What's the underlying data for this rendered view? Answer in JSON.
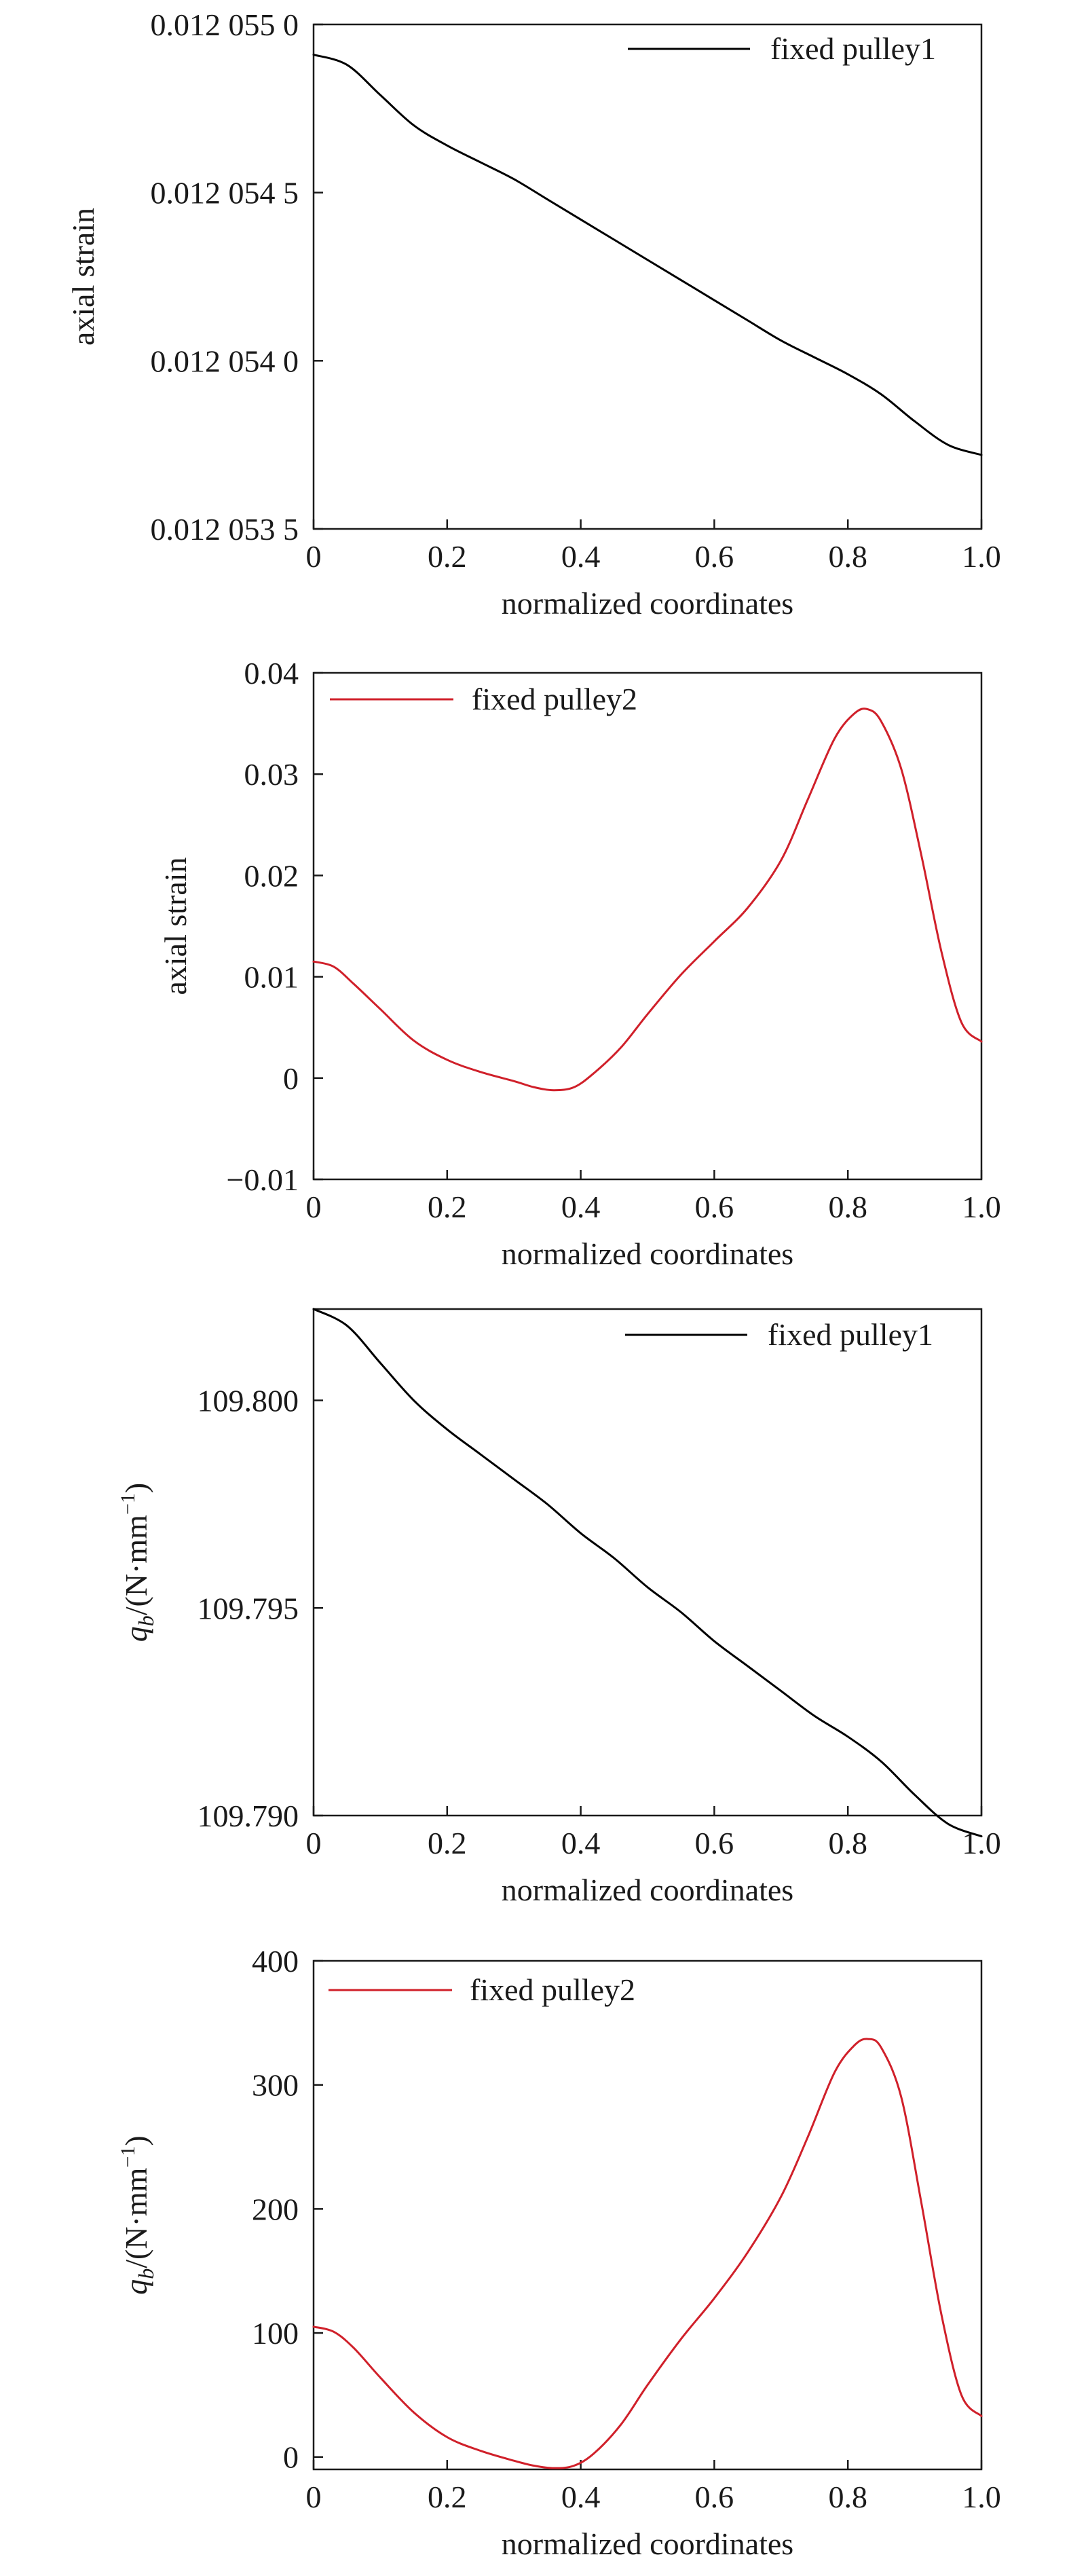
{
  "chart_data": [
    {
      "type": "line",
      "xlabel": "normalized coordinates",
      "ylabel": "axial strain",
      "xlim": [
        0,
        1.0
      ],
      "ylim": [
        0.0120535,
        0.012055
      ],
      "x_ticks": [
        0,
        0.2,
        0.4,
        0.6,
        0.8,
        1.0
      ],
      "x_tick_labels": [
        "0",
        "0.2",
        "0.4",
        "0.6",
        "0.8",
        "1.0"
      ],
      "y_ticks": [
        0.0120535,
        0.012054,
        0.0120545,
        0.012055
      ],
      "y_tick_labels": [
        "0.012 053 5",
        "0.012 054 0",
        "0.012 054 5",
        "0.012 055 0"
      ],
      "legend_position": "top-right",
      "grid": false,
      "series": [
        {
          "name": "fixed pulley1",
          "color": "#000000",
          "x": [
            0,
            0.05,
            0.1,
            0.15,
            0.2,
            0.25,
            0.3,
            0.35,
            0.4,
            0.45,
            0.5,
            0.55,
            0.6,
            0.65,
            0.7,
            0.75,
            0.8,
            0.85,
            0.9,
            0.95,
            1.0
          ],
          "y": [
            0.01205491,
            0.01205488,
            0.01205479,
            0.0120547,
            0.01205464,
            0.01205459,
            0.01205454,
            0.01205448,
            0.01205442,
            0.01205436,
            0.0120543,
            0.01205424,
            0.01205418,
            0.01205412,
            0.01205406,
            0.01205401,
            0.01205396,
            0.0120539,
            0.01205382,
            0.01205375,
            0.01205372
          ]
        }
      ]
    },
    {
      "type": "line",
      "xlabel": "normalized coordinates",
      "ylabel": "axial strain",
      "xlim": [
        0,
        1.0
      ],
      "ylim": [
        -0.01,
        0.04
      ],
      "x_ticks": [
        0,
        0.2,
        0.4,
        0.6,
        0.8,
        1.0
      ],
      "x_tick_labels": [
        "0",
        "0.2",
        "0.4",
        "0.6",
        "0.8",
        "1.0"
      ],
      "y_ticks": [
        -0.01,
        0,
        0.01,
        0.02,
        0.03,
        0.04
      ],
      "y_tick_labels": [
        "−0.01",
        "0",
        "0.01",
        "0.02",
        "0.03",
        "0.04"
      ],
      "legend_position": "top-left",
      "grid": false,
      "series": [
        {
          "name": "fixed pulley2",
          "color": "#d0202a",
          "x": [
            0,
            0.03,
            0.06,
            0.1,
            0.15,
            0.2,
            0.25,
            0.3,
            0.33,
            0.36,
            0.39,
            0.42,
            0.46,
            0.5,
            0.55,
            0.6,
            0.65,
            0.7,
            0.74,
            0.78,
            0.81,
            0.83,
            0.85,
            0.88,
            0.91,
            0.94,
            0.97,
            1.0
          ],
          "y": [
            0.0115,
            0.011,
            0.0093,
            0.0068,
            0.0037,
            0.0018,
            0.0006,
            -0.0003,
            -0.0009,
            -0.0012,
            -0.0009,
            0.0005,
            0.003,
            0.0063,
            0.0102,
            0.0135,
            0.0168,
            0.0215,
            0.0275,
            0.0335,
            0.036,
            0.0364,
            0.0352,
            0.0305,
            0.022,
            0.0125,
            0.0055,
            0.0036
          ]
        }
      ]
    },
    {
      "type": "line",
      "xlabel": "normalized coordinates",
      "ylabel": "q_b/(N·mm⁻¹)",
      "ylabel_parts": {
        "var": "q",
        "sub": "b",
        "unit": "/(N·mm",
        "sup": "−1",
        "close": ")"
      },
      "xlim": [
        0,
        1.0
      ],
      "ylim": [
        109.79,
        109.8022
      ],
      "x_ticks": [
        0,
        0.2,
        0.4,
        0.6,
        0.8,
        1.0
      ],
      "x_tick_labels": [
        "0",
        "0.2",
        "0.4",
        "0.6",
        "0.8",
        "1.0"
      ],
      "y_ticks": [
        109.79,
        109.795,
        109.8
      ],
      "y_tick_labels": [
        "109.790",
        "109.795",
        "109.800"
      ],
      "legend_position": "top-right",
      "grid": false,
      "series": [
        {
          "name": "fixed pulley1",
          "color": "#000000",
          "x": [
            0,
            0.05,
            0.1,
            0.15,
            0.2,
            0.25,
            0.3,
            0.35,
            0.4,
            0.45,
            0.5,
            0.55,
            0.6,
            0.65,
            0.7,
            0.75,
            0.8,
            0.85,
            0.9,
            0.95,
            1.0
          ],
          "y": [
            109.8022,
            109.8018,
            109.8009,
            109.8,
            109.7993,
            109.7987,
            109.7981,
            109.7975,
            109.7968,
            109.7962,
            109.7955,
            109.7949,
            109.7942,
            109.7936,
            109.793,
            109.7924,
            109.7919,
            109.7913,
            109.7905,
            109.7898,
            109.7895
          ]
        }
      ]
    },
    {
      "type": "line",
      "xlabel": "normalized coordinates",
      "ylabel": "q_b/(N·mm⁻¹)",
      "ylabel_parts": {
        "var": "q",
        "sub": "b",
        "unit": "/(N·mm",
        "sup": "−1",
        "close": ")"
      },
      "xlim": [
        0,
        1.0
      ],
      "ylim": [
        -10,
        400
      ],
      "x_ticks": [
        0,
        0.2,
        0.4,
        0.6,
        0.8,
        1.0
      ],
      "x_tick_labels": [
        "0",
        "0.2",
        "0.4",
        "0.6",
        "0.8",
        "1.0"
      ],
      "y_ticks": [
        0,
        100,
        200,
        300,
        400
      ],
      "y_tick_labels": [
        "0",
        "100",
        "200",
        "300",
        "400"
      ],
      "legend_position": "top-left",
      "grid": false,
      "series": [
        {
          "name": "fixed pulley2",
          "color": "#d0202a",
          "x": [
            0,
            0.03,
            0.06,
            0.1,
            0.15,
            0.2,
            0.25,
            0.3,
            0.33,
            0.36,
            0.39,
            0.42,
            0.46,
            0.5,
            0.55,
            0.6,
            0.65,
            0.7,
            0.74,
            0.78,
            0.81,
            0.83,
            0.85,
            0.88,
            0.91,
            0.94,
            0.97,
            1.0
          ],
          "y": [
            105,
            101,
            88,
            64,
            36,
            16,
            5,
            -3,
            -7,
            -9,
            -7,
            3,
            26,
            58,
            95,
            128,
            165,
            210,
            258,
            310,
            332,
            337,
            330,
            290,
            205,
            115,
            50,
            33
          ]
        }
      ]
    }
  ]
}
